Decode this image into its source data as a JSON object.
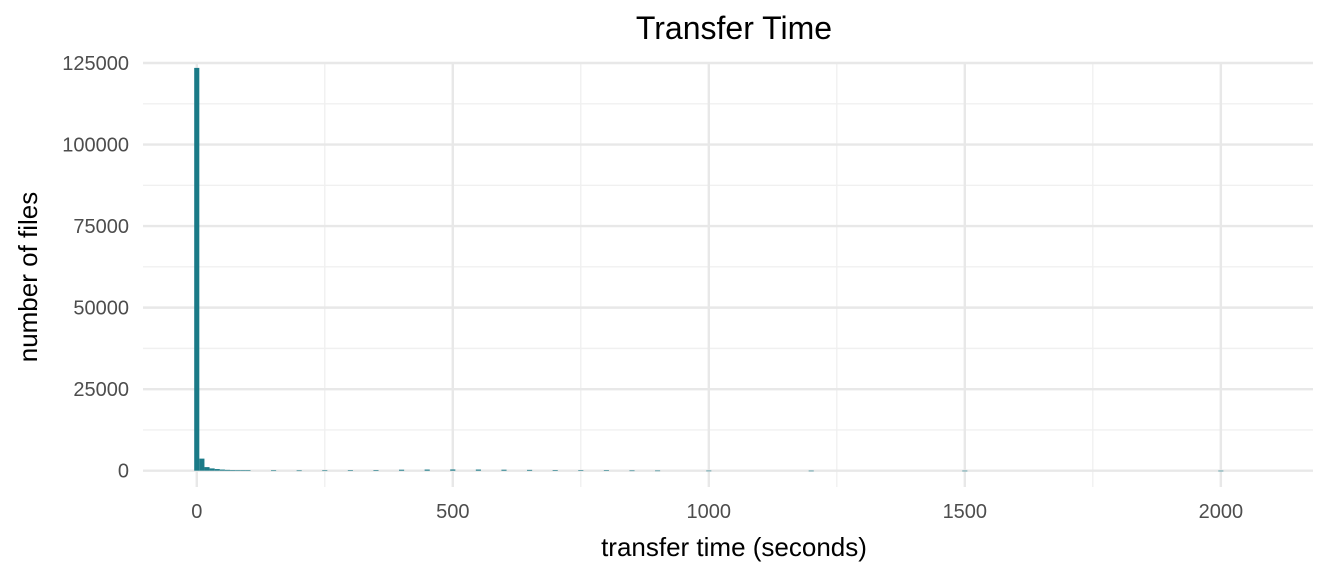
{
  "chart_data": {
    "type": "bar",
    "title": "Transfer Time",
    "xlabel": "transfer time (seconds)",
    "ylabel": "number of files",
    "xlim": [
      -105,
      2180
    ],
    "ylim": [
      -5000,
      125000
    ],
    "x_ticks": [
      0,
      500,
      1000,
      1500,
      2000
    ],
    "x_tick_labels": [
      "0",
      "500",
      "1000",
      "1500",
      "2000"
    ],
    "y_ticks": [
      0,
      25000,
      50000,
      75000,
      100000,
      125000
    ],
    "y_tick_labels": [
      "0",
      "25000",
      "50000",
      "75000",
      "100000",
      "125000"
    ],
    "grid": true,
    "bar_color": "#1a7a87",
    "bin_width": 10,
    "bins": [
      {
        "x": 0,
        "value": 123500
      },
      {
        "x": 10,
        "value": 3700
      },
      {
        "x": 20,
        "value": 1100
      },
      {
        "x": 30,
        "value": 700
      },
      {
        "x": 40,
        "value": 500
      },
      {
        "x": 50,
        "value": 350
      },
      {
        "x": 60,
        "value": 250
      },
      {
        "x": 70,
        "value": 200
      },
      {
        "x": 80,
        "value": 150
      },
      {
        "x": 90,
        "value": 120
      },
      {
        "x": 100,
        "value": 100
      },
      {
        "x": 150,
        "value": 80
      },
      {
        "x": 200,
        "value": 70
      },
      {
        "x": 250,
        "value": 80
      },
      {
        "x": 300,
        "value": 120
      },
      {
        "x": 350,
        "value": 200
      },
      {
        "x": 400,
        "value": 300
      },
      {
        "x": 450,
        "value": 350
      },
      {
        "x": 500,
        "value": 380
      },
      {
        "x": 550,
        "value": 350
      },
      {
        "x": 600,
        "value": 300
      },
      {
        "x": 650,
        "value": 250
      },
      {
        "x": 700,
        "value": 200
      },
      {
        "x": 750,
        "value": 150
      },
      {
        "x": 800,
        "value": 100
      },
      {
        "x": 850,
        "value": 60
      },
      {
        "x": 900,
        "value": 40
      },
      {
        "x": 1000,
        "value": 20
      },
      {
        "x": 1200,
        "value": 10
      },
      {
        "x": 1500,
        "value": 5
      },
      {
        "x": 2000,
        "value": 2
      }
    ]
  }
}
